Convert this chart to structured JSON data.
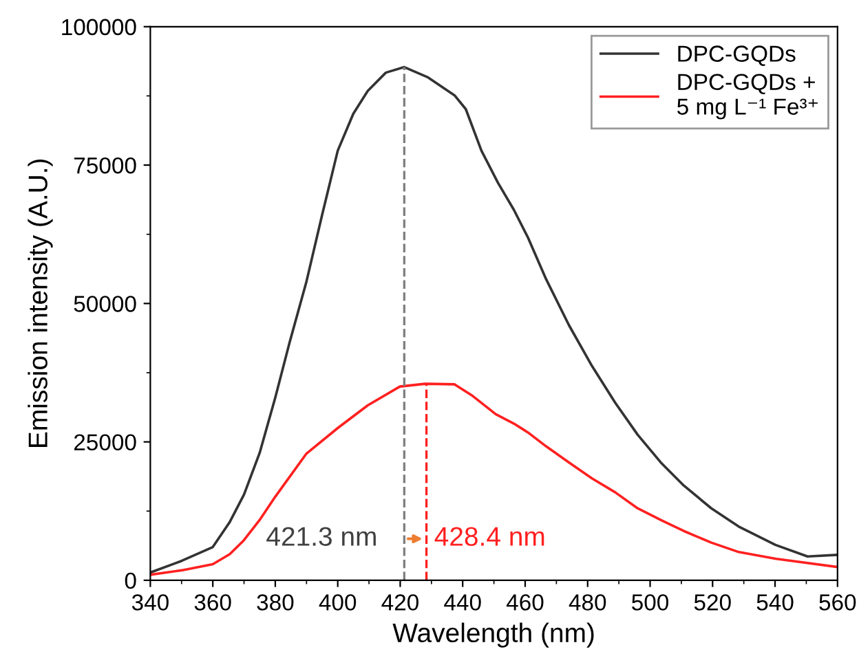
{
  "chart_data": {
    "type": "line",
    "xlabel": "Wavelength (nm)",
    "ylabel": "Emission intensity (A.U.)",
    "xlim": [
      340,
      560
    ],
    "xticks": [
      340,
      360,
      380,
      400,
      420,
      440,
      460,
      480,
      500,
      520,
      540,
      560
    ],
    "ylim": [
      0,
      100000
    ],
    "yticks": [
      0,
      25000,
      50000,
      75000,
      100000
    ],
    "grid": false,
    "legend": "top right",
    "marker": "none",
    "line_style": "solid",
    "series": [
      {
        "name": "DPC-GQDs",
        "color": "#333333",
        "x": [
          340,
          350,
          360,
          365.4,
          370,
          375,
          380,
          384.6,
          390,
          395,
          400,
          405,
          409.6,
          415.4,
          421.3,
          428.7,
          437.4,
          441,
          446,
          451.3,
          456.4,
          460.9,
          466.7,
          474,
          481.4,
          488.8,
          496,
          503.4,
          510.8,
          519.6,
          528.4,
          540.1,
          550.4,
          560
        ],
        "values": [
          1400,
          3500,
          6000,
          10500,
          15500,
          23000,
          33000,
          43000,
          54000,
          66000,
          77600,
          84300,
          88400,
          91700,
          92700,
          90900,
          87600,
          85100,
          77600,
          71800,
          66900,
          61900,
          54400,
          46100,
          38700,
          32100,
          26300,
          21300,
          17100,
          13000,
          9700,
          6400,
          4300,
          4600
        ]
      },
      {
        "name": "DPC-GQDs +\n5 mg L⁻¹ Fe³⁺",
        "color": "#ff2020",
        "x": [
          340,
          350,
          360,
          365.4,
          369.9,
          375,
          380,
          390,
          400,
          409.6,
          419.9,
          428,
          437.4,
          443.2,
          450.6,
          456.4,
          460.9,
          466.7,
          474,
          481.4,
          488.8,
          496,
          503.4,
          510.8,
          519.6,
          528.4,
          540.1,
          560
        ],
        "values": [
          1000,
          1800,
          2900,
          4700,
          7200,
          10900,
          15100,
          22900,
          27500,
          31600,
          35000,
          35500,
          35400,
          33300,
          30000,
          28300,
          26700,
          24200,
          21300,
          18400,
          15900,
          13000,
          10900,
          8900,
          6800,
          5100,
          3900,
          2400
        ]
      }
    ],
    "ref_lines": [
      {
        "axis": "x",
        "value": 421.3,
        "color": "#808080",
        "line_style": "dashed"
      },
      {
        "axis": "x",
        "value": 428.4,
        "color": "#ff2020",
        "line_style": "dashed"
      }
    ],
    "annotations": [
      {
        "text": "421.3 nm",
        "x": 421.3,
        "y": 7500
      },
      {
        "text": "428.4 nm",
        "x": 428.4,
        "y": 7500
      }
    ]
  }
}
